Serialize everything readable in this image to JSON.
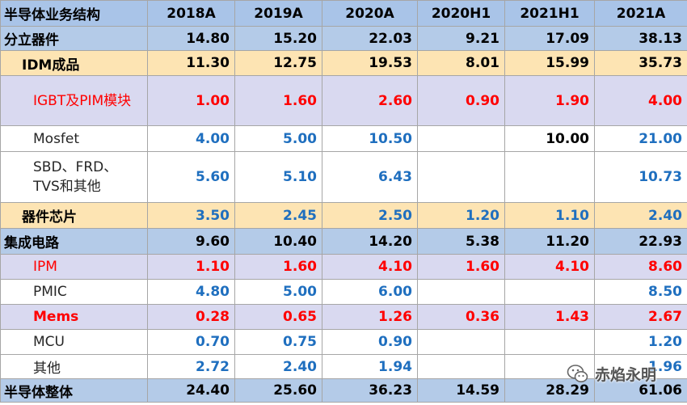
{
  "header": {
    "title": "半导体业务结构",
    "columns": [
      "2018A",
      "2019A",
      "2020A",
      "2020H1",
      "2021H1",
      "2021A"
    ]
  },
  "rows": [
    {
      "label": "分立器件",
      "values": [
        "14.80",
        "15.20",
        "22.03",
        "9.21",
        "17.09",
        "38.13"
      ]
    },
    {
      "label": "IDM成品",
      "values": [
        "11.30",
        "12.75",
        "19.53",
        "8.01",
        "15.99",
        "35.73"
      ]
    },
    {
      "label": "IGBT及PIM模块",
      "values": [
        "1.00",
        "1.60",
        "2.60",
        "0.90",
        "1.90",
        "4.00"
      ]
    },
    {
      "label": "Mosfet",
      "values": [
        "4.00",
        "5.00",
        "10.50",
        "",
        "10.00",
        "21.00"
      ]
    },
    {
      "label": "SBD、FRD、TVS和其他",
      "values": [
        "5.60",
        "5.10",
        "6.43",
        "",
        "",
        "10.73"
      ]
    },
    {
      "label": "器件芯片",
      "values": [
        "3.50",
        "2.45",
        "2.50",
        "1.20",
        "1.10",
        "2.40"
      ]
    },
    {
      "label": "集成电路",
      "values": [
        "9.60",
        "10.40",
        "14.20",
        "5.38",
        "11.20",
        "22.93"
      ]
    },
    {
      "label": "IPM",
      "values": [
        "1.10",
        "1.60",
        "4.10",
        "1.60",
        "4.10",
        "8.60"
      ]
    },
    {
      "label": "PMIC",
      "values": [
        "4.80",
        "5.00",
        "6.00",
        "",
        "",
        "8.50"
      ]
    },
    {
      "label": "Mems",
      "values": [
        "0.28",
        "0.65",
        "1.26",
        "0.36",
        "1.43",
        "2.67"
      ]
    },
    {
      "label": "MCU",
      "values": [
        "0.70",
        "0.75",
        "0.90",
        "",
        "",
        "1.20"
      ]
    },
    {
      "label": "其他",
      "values": [
        "2.72",
        "2.40",
        "1.94",
        "",
        "",
        "1.96"
      ]
    },
    {
      "label": "半导体整体",
      "values": [
        "24.40",
        "25.60",
        "36.23",
        "14.59",
        "28.29",
        "61.06"
      ]
    }
  ],
  "watermark": {
    "text": "赤焰永明",
    "icon": "wechat-icon"
  },
  "colors": {
    "header_bg": "#a9c4e8",
    "idm_bg": "#fde4b3",
    "sub_bg": "#d9d9f0",
    "red": "#ff0000",
    "blue": "#1f6fbf"
  }
}
